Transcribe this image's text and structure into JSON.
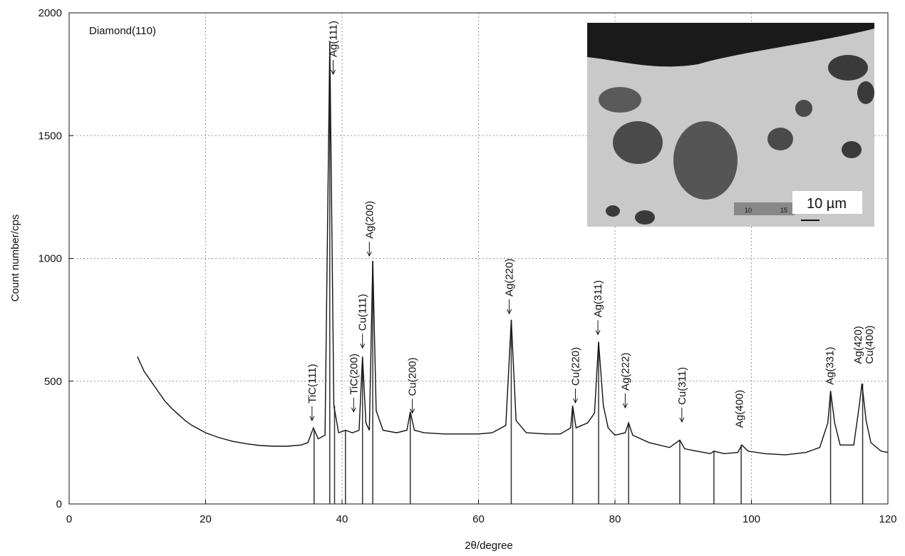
{
  "chart_data": {
    "type": "line",
    "x_label": "2θ/degree",
    "y_label": "Count number/cps",
    "note": "Diamond(110)",
    "color": "#111111",
    "xlim": [
      0,
      120
    ],
    "xticks": [
      0,
      20,
      40,
      60,
      80,
      100,
      120
    ],
    "ylim": [
      0,
      2000
    ],
    "yticks": [
      0,
      500,
      1000,
      1500,
      2000
    ],
    "grid": true,
    "x": [
      10,
      11,
      12,
      13,
      14,
      15,
      16,
      17,
      18,
      19,
      20,
      22,
      24,
      26,
      28,
      30,
      32,
      34,
      35,
      35.8,
      36.5,
      37.5,
      38.2,
      38.8,
      39.5,
      40.5,
      41.5,
      42.5,
      43.0,
      43.5,
      44.0,
      44.5,
      45.0,
      46,
      48,
      49.5,
      50,
      50.6,
      52,
      55,
      58,
      60,
      62,
      64,
      64.8,
      65.5,
      67,
      70,
      72,
      73.5,
      73.8,
      74.3,
      76,
      77,
      77.6,
      78.3,
      79,
      80,
      81.5,
      82,
      82.6,
      85,
      88,
      89.5,
      90.2,
      92,
      94,
      94.5,
      96,
      98,
      98.6,
      99.5,
      102,
      105,
      108,
      110,
      111.2,
      111.6,
      112.2,
      113,
      115,
      115.8,
      116.2,
      116.8,
      117.5,
      119,
      120
    ],
    "values": [
      600,
      540,
      500,
      460,
      420,
      390,
      365,
      340,
      320,
      305,
      290,
      270,
      255,
      245,
      238,
      235,
      235,
      240,
      250,
      310,
      265,
      280,
      1880,
      400,
      290,
      300,
      290,
      300,
      600,
      330,
      300,
      990,
      380,
      300,
      290,
      300,
      375,
      300,
      290,
      285,
      285,
      285,
      290,
      320,
      750,
      340,
      290,
      285,
      285,
      310,
      400,
      310,
      330,
      370,
      660,
      400,
      310,
      280,
      290,
      330,
      280,
      250,
      230,
      260,
      225,
      215,
      205,
      215,
      205,
      210,
      240,
      215,
      205,
      200,
      210,
      230,
      330,
      460,
      330,
      240,
      240,
      400,
      490,
      340,
      250,
      215,
      210
    ],
    "reference_lines": {
      "x": [
        35.9,
        38.2,
        38.9,
        40.5,
        43.0,
        44.5,
        50.0,
        64.8,
        73.8,
        77.6,
        82.0,
        89.5,
        94.5,
        98.5,
        111.6,
        116.3
      ],
      "values": [
        300,
        1880,
        400,
        300,
        600,
        990,
        375,
        750,
        400,
        660,
        330,
        260,
        215,
        240,
        460,
        490
      ]
    },
    "annotations": [
      {
        "text": "TiC(111)",
        "x": 35.6,
        "y": 340,
        "arrow": true
      },
      {
        "text": "Ag(111)",
        "x": 38.7,
        "y": 1750,
        "arrow": true
      },
      {
        "text": "TiC(200)",
        "x": 41.7,
        "y": 375,
        "arrow": true
      },
      {
        "text": "Cu(111)",
        "x": 43.0,
        "y": 635,
        "arrow": true
      },
      {
        "text": "Ag(200)",
        "x": 44.0,
        "y": 1010,
        "arrow": true
      },
      {
        "text": "Cu(200)",
        "x": 50.3,
        "y": 370,
        "arrow": true
      },
      {
        "text": "Ag(220)",
        "x": 64.5,
        "y": 775,
        "arrow": true
      },
      {
        "text": "Cu(220)",
        "x": 74.2,
        "y": 412,
        "arrow": true
      },
      {
        "text": "Ag(311)",
        "x": 77.5,
        "y": 690,
        "arrow": true
      },
      {
        "text": "Ag(222)",
        "x": 81.5,
        "y": 392,
        "arrow": true
      },
      {
        "text": "Cu(311)",
        "x": 89.8,
        "y": 334,
        "arrow": true
      },
      {
        "text": "Ag(400)",
        "x": 98.2,
        "y": 310,
        "arrow": false
      },
      {
        "text": "Ag(331)",
        "x": 111.5,
        "y": 485,
        "arrow": false
      },
      {
        "text": "Ag(420)",
        "x": 115.6,
        "y": 570,
        "arrow": false
      },
      {
        "text": "Cu(400)",
        "x": 117.3,
        "y": 570,
        "arrow": false
      }
    ],
    "inset": {
      "scale_label": "10 µm",
      "bar_labels": [
        "10",
        "15"
      ]
    }
  }
}
